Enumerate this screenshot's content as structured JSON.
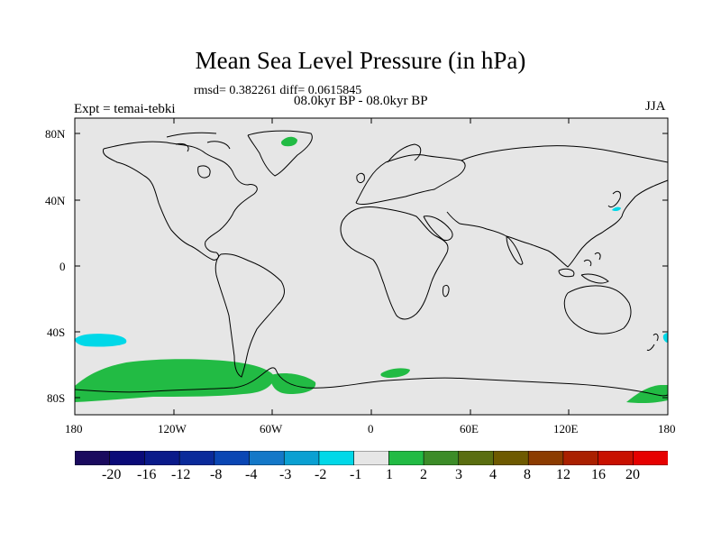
{
  "header": {
    "title": "Mean Sea Level Pressure (in hPa)",
    "stats": "rmsd= 0.382261 diff= 0.0615845",
    "period": "08.0kyr BP - 08.0kyr BP",
    "experiment": "Expt = temai-tebki",
    "season": "JJA"
  },
  "map": {
    "lat_labels": [
      "80N",
      "40N",
      "0",
      "40S",
      "80S"
    ],
    "lon_labels": [
      "180",
      "120W",
      "60W",
      "0",
      "60E",
      "120E",
      "180"
    ],
    "background_color": "#e6e6e6",
    "anomaly_regions": [
      {
        "name": "Southern Ocean / Antarctic Pacific sector",
        "level": "1 to 2",
        "color": "#22bb44"
      },
      {
        "name": "Weddell Sea",
        "level": "1 to 2",
        "color": "#22bb44"
      },
      {
        "name": "Southern Ocean off Africa",
        "level": "1 to 2",
        "color": "#22bb44"
      },
      {
        "name": "Southern Ocean south of Australia",
        "level": "1 to 2",
        "color": "#22bb44"
      },
      {
        "name": "Greenland",
        "level": "1 to 2",
        "color": "#22bb44"
      },
      {
        "name": "South Pacific near 45S",
        "level": "-2 to -1",
        "color": "#00d8e8"
      },
      {
        "name": "North Pacific off Japan",
        "level": "-2 to -1",
        "color": "#00d8e8"
      },
      {
        "name": "Tasman Sea",
        "level": "-2 to -1",
        "color": "#00d8e8"
      }
    ]
  },
  "colorbar": {
    "labels": [
      "-20",
      "-16",
      "-12",
      "-8",
      "-4",
      "-3",
      "-2",
      "-1",
      "1",
      "2",
      "3",
      "4",
      "8",
      "12",
      "16",
      "20"
    ],
    "colors": [
      "#1a0a5e",
      "#0a0a78",
      "#0a1a8a",
      "#0a2a9a",
      "#0a46b4",
      "#1478c8",
      "#0aa0d2",
      "#00d8e8",
      "#e6e6e6",
      "#22bb44",
      "#3c8c28",
      "#5a6e10",
      "#6e5a00",
      "#8c3c00",
      "#aa2000",
      "#c81000",
      "#e60000"
    ]
  }
}
